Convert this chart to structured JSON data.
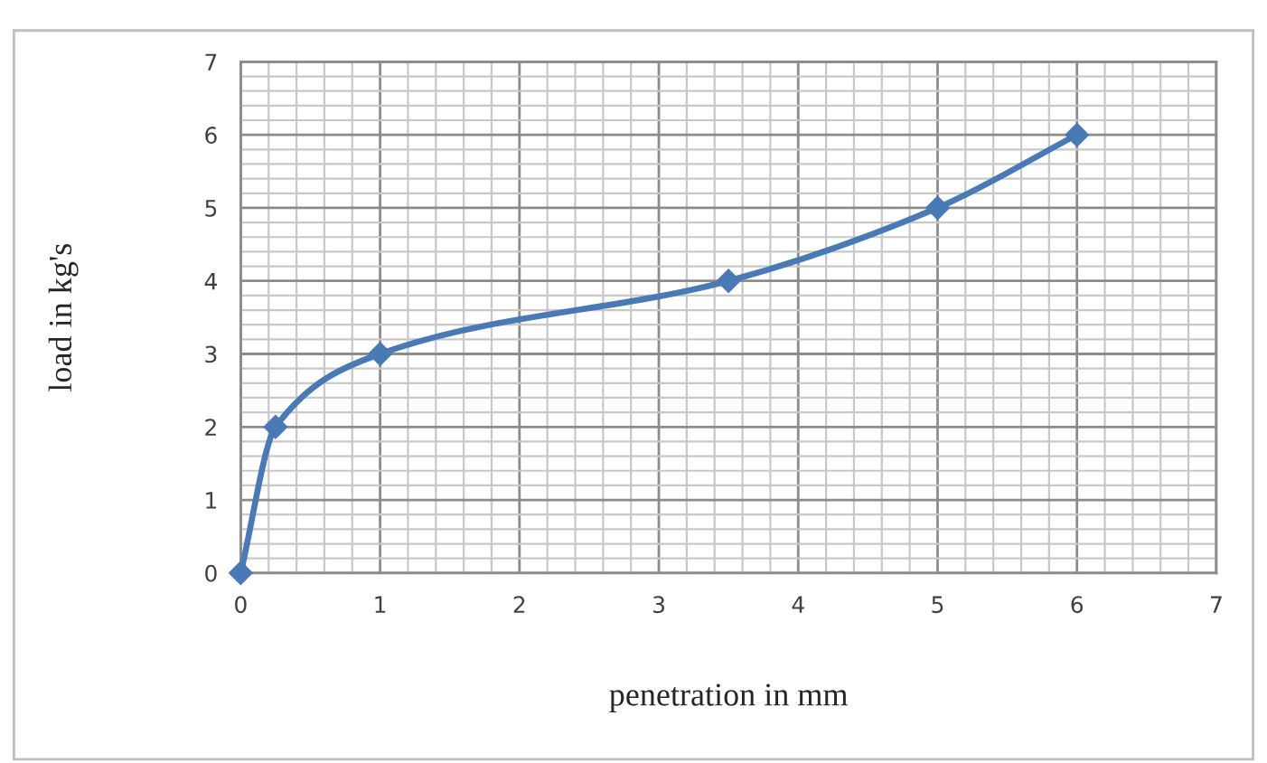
{
  "chart_data": {
    "type": "line",
    "xlabel": "penetration in mm",
    "ylabel": "load in kg's",
    "x": [
      0,
      0.25,
      1,
      3.5,
      5,
      6
    ],
    "series": [
      {
        "color": "#4a7ab5",
        "values": [
          0,
          2,
          3,
          4,
          5,
          6
        ]
      }
    ],
    "xlim": [
      0,
      7
    ],
    "ylim": [
      0,
      7
    ],
    "xticks": [
      0,
      1,
      2,
      3,
      4,
      5,
      6,
      7
    ],
    "yticks": [
      0,
      1,
      2,
      3,
      4,
      5,
      6,
      7
    ],
    "grid": true,
    "marker": "diamond",
    "line_style": "solid"
  }
}
